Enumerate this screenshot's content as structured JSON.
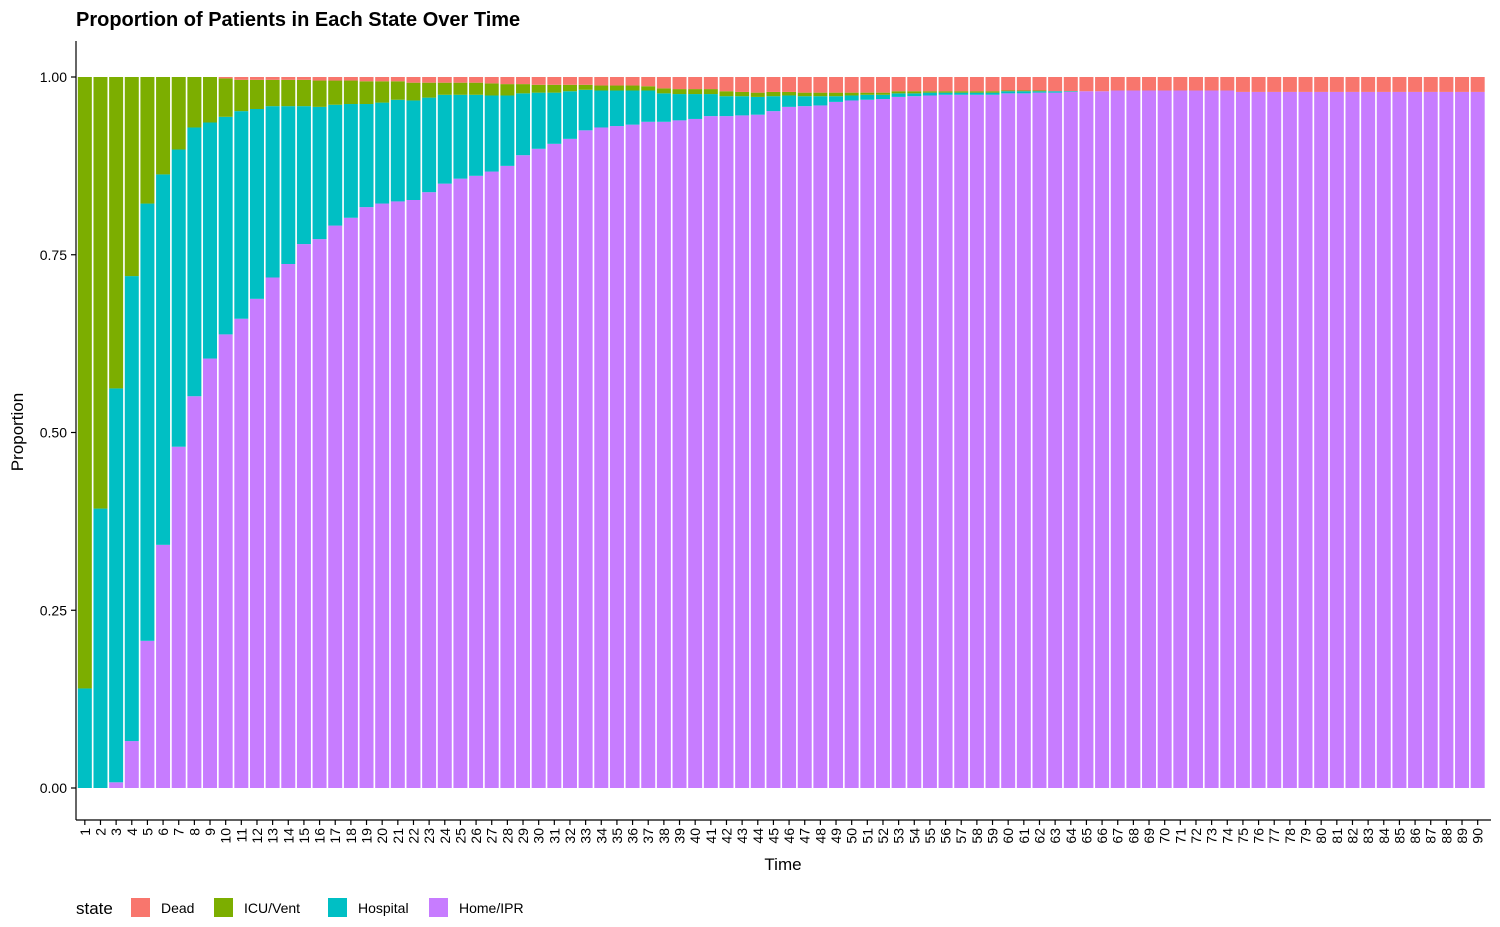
{
  "chart_data": {
    "type": "bar",
    "stacked": true,
    "title": "Proportion of Patients in Each State Over Time",
    "xlabel": "Time",
    "ylabel": "Proportion",
    "ylim": [
      0,
      1
    ],
    "yticks": [
      "0.00",
      "0.25",
      "0.50",
      "0.75",
      "1.00"
    ],
    "grid": false,
    "legend": {
      "title": "state",
      "position": "bottom-left",
      "entries": [
        "Dead",
        "ICU/Vent",
        "Hospital",
        "Home/IPR"
      ]
    },
    "colors": {
      "Dead": "#F8766D",
      "ICU/Vent": "#7CAE00",
      "Hospital": "#00BFC4",
      "Home/IPR": "#C77CFF"
    },
    "categories": [
      1,
      2,
      3,
      4,
      5,
      6,
      7,
      8,
      9,
      10,
      11,
      12,
      13,
      14,
      15,
      16,
      17,
      18,
      19,
      20,
      21,
      22,
      23,
      24,
      25,
      26,
      27,
      28,
      29,
      30,
      31,
      32,
      33,
      34,
      35,
      36,
      37,
      38,
      39,
      40,
      41,
      42,
      43,
      44,
      45,
      46,
      47,
      48,
      49,
      50,
      51,
      52,
      53,
      54,
      55,
      56,
      57,
      58,
      59,
      60,
      61,
      62,
      63,
      64,
      65,
      66,
      67,
      68,
      69,
      70,
      71,
      72,
      73,
      74,
      75,
      76,
      77,
      78,
      79,
      80,
      81,
      82,
      83,
      84,
      85,
      86,
      87,
      88,
      89,
      90
    ],
    "series": [
      {
        "name": "Home/IPR",
        "values": [
          0,
          0,
          0.008,
          0.066,
          0.207,
          0.342,
          0.48,
          0.551,
          0.604,
          0.638,
          0.66,
          0.688,
          0.718,
          0.737,
          0.765,
          0.772,
          0.791,
          0.802,
          0.817,
          0.822,
          0.825,
          0.827,
          0.838,
          0.85,
          0.857,
          0.861,
          0.867,
          0.875,
          0.89,
          0.899,
          0.906,
          0.913,
          0.925,
          0.929,
          0.931,
          0.933,
          0.937,
          0.937,
          0.939,
          0.941,
          0.945,
          0.945,
          0.946,
          0.947,
          0.952,
          0.958,
          0.959,
          0.96,
          0.965,
          0.967,
          0.968,
          0.969,
          0.972,
          0.973,
          0.974,
          0.975,
          0.975,
          0.975,
          0.975,
          0.977,
          0.977,
          0.978,
          0.978,
          0.979,
          0.98,
          0.98,
          0.981,
          0.981,
          0.981,
          0.981,
          0.981,
          0.981,
          0.981,
          0.981,
          0.979,
          0.979,
          0.979,
          0.979,
          0.979,
          0.979,
          0.979,
          0.979,
          0.979,
          0.979,
          0.979,
          0.979,
          0.979,
          0.979,
          0.979,
          0.979
        ]
      },
      {
        "name": "Hospital",
        "values": [
          0.14,
          0.393,
          0.554,
          0.654,
          0.615,
          0.521,
          0.418,
          0.378,
          0.332,
          0.306,
          0.292,
          0.267,
          0.241,
          0.222,
          0.194,
          0.186,
          0.17,
          0.16,
          0.145,
          0.142,
          0.143,
          0.14,
          0.133,
          0.125,
          0.118,
          0.114,
          0.107,
          0.099,
          0.087,
          0.079,
          0.072,
          0.067,
          0.057,
          0.052,
          0.05,
          0.048,
          0.044,
          0.04,
          0.037,
          0.035,
          0.031,
          0.028,
          0.027,
          0.025,
          0.021,
          0.016,
          0.014,
          0.013,
          0.008,
          0.007,
          0.007,
          0.006,
          0.005,
          0.004,
          0.004,
          0.003,
          0.003,
          0.003,
          0.003,
          0.003,
          0.003,
          0.002,
          0.002,
          0.001,
          0,
          0,
          0,
          0,
          0,
          0,
          0,
          0,
          0,
          0,
          0,
          0,
          0,
          0,
          0,
          0,
          0,
          0,
          0,
          0,
          0,
          0,
          0,
          0,
          0,
          0
        ]
      },
      {
        "name": "ICU/Vent",
        "values": [
          0.86,
          0.607,
          0.438,
          0.28,
          0.178,
          0.137,
          0.102,
          0.071,
          0.064,
          0.054,
          0.044,
          0.041,
          0.037,
          0.037,
          0.037,
          0.037,
          0.034,
          0.033,
          0.032,
          0.03,
          0.026,
          0.025,
          0.021,
          0.017,
          0.017,
          0.017,
          0.017,
          0.016,
          0.013,
          0.011,
          0.011,
          0.009,
          0.007,
          0.007,
          0.007,
          0.007,
          0.006,
          0.007,
          0.007,
          0.007,
          0.007,
          0.007,
          0.006,
          0.006,
          0.006,
          0.005,
          0.005,
          0.005,
          0.005,
          0.004,
          0.003,
          0.003,
          0.003,
          0.003,
          0.002,
          0.002,
          0.002,
          0.002,
          0.002,
          0.001,
          0.001,
          0.001,
          0,
          0,
          0,
          0,
          0,
          0,
          0,
          0,
          0,
          0,
          0,
          0,
          0,
          0,
          0,
          0,
          0,
          0,
          0,
          0,
          0,
          0,
          0,
          0,
          0,
          0,
          0,
          0
        ]
      },
      {
        "name": "Dead",
        "values": [
          0,
          0,
          0,
          0,
          0,
          0,
          0,
          0,
          0,
          0.002,
          0.004,
          0.004,
          0.004,
          0.004,
          0.004,
          0.005,
          0.005,
          0.005,
          0.006,
          0.006,
          0.006,
          0.008,
          0.008,
          0.008,
          0.008,
          0.008,
          0.009,
          0.01,
          0.01,
          0.011,
          0.011,
          0.011,
          0.011,
          0.012,
          0.012,
          0.012,
          0.013,
          0.016,
          0.017,
          0.017,
          0.017,
          0.02,
          0.021,
          0.022,
          0.021,
          0.021,
          0.022,
          0.022,
          0.022,
          0.022,
          0.022,
          0.022,
          0.02,
          0.02,
          0.02,
          0.02,
          0.02,
          0.02,
          0.02,
          0.019,
          0.019,
          0.019,
          0.02,
          0.02,
          0.02,
          0.02,
          0.019,
          0.019,
          0.019,
          0.019,
          0.019,
          0.019,
          0.019,
          0.019,
          0.021,
          0.021,
          0.021,
          0.021,
          0.021,
          0.021,
          0.021,
          0.021,
          0.021,
          0.021,
          0.021,
          0.021,
          0.021,
          0.021,
          0.021,
          0.021
        ]
      }
    ]
  }
}
